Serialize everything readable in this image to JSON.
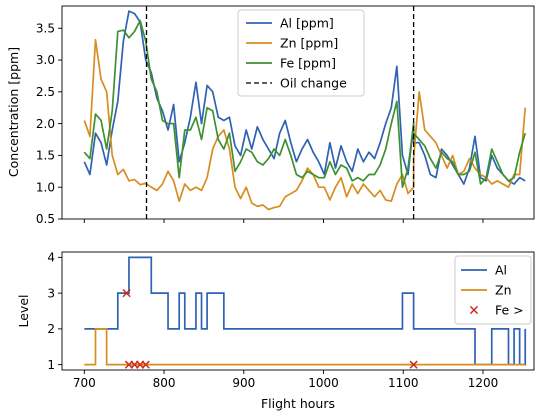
{
  "chart_data": [
    {
      "type": "line",
      "ylabel": "Concentration [ppm]",
      "xlim": [
        672,
        1264
      ],
      "ylim": [
        0.5,
        3.85
      ],
      "yticks": [
        "0.5",
        "1.0",
        "1.5",
        "2.0",
        "2.5",
        "3.0",
        "3.5"
      ],
      "ytick_values": [
        0.5,
        1.0,
        1.5,
        2.0,
        2.5,
        3.0,
        3.5
      ],
      "grid": false,
      "legend_position": "top-center",
      "vlines": {
        "name": "Oil change",
        "x": [
          778,
          1113
        ],
        "color": "#000000"
      },
      "series": [
        {
          "name": "Al [ppm]",
          "color": "#2f62b3",
          "x": [
            700,
            707,
            714,
            721,
            728,
            735,
            742,
            749,
            756,
            763,
            770,
            777,
            784,
            791,
            798,
            805,
            812,
            819,
            826,
            833,
            840,
            847,
            854,
            861,
            868,
            875,
            882,
            889,
            896,
            903,
            910,
            917,
            924,
            931,
            938,
            945,
            952,
            959,
            966,
            973,
            980,
            987,
            994,
            1001,
            1008,
            1015,
            1022,
            1029,
            1036,
            1043,
            1050,
            1057,
            1064,
            1071,
            1078,
            1085,
            1092,
            1099,
            1106,
            1113,
            1113,
            1120,
            1127,
            1134,
            1141,
            1148,
            1155,
            1162,
            1169,
            1176,
            1183,
            1190,
            1197,
            1204,
            1211,
            1218,
            1225,
            1232,
            1239,
            1246,
            1253
          ],
          "values": [
            1.4,
            1.2,
            1.85,
            1.7,
            1.35,
            1.9,
            2.35,
            3.3,
            3.77,
            3.73,
            3.6,
            3.0,
            2.8,
            2.4,
            2.2,
            1.9,
            2.3,
            1.4,
            1.7,
            2.1,
            2.65,
            2.0,
            2.6,
            2.5,
            2.1,
            2.05,
            2.1,
            1.65,
            1.5,
            1.9,
            1.6,
            1.95,
            1.75,
            1.6,
            1.45,
            1.85,
            2.05,
            1.7,
            1.4,
            1.6,
            1.75,
            1.55,
            1.4,
            1.2,
            1.7,
            1.3,
            1.65,
            1.4,
            1.25,
            1.6,
            1.4,
            1.55,
            1.45,
            1.7,
            2.0,
            2.25,
            2.9,
            1.5,
            1.2,
            2.0,
            1.7,
            1.7,
            1.5,
            1.2,
            1.15,
            1.6,
            1.5,
            1.35,
            1.2,
            1.05,
            1.3,
            1.8,
            1.15,
            1.1,
            1.5,
            1.3,
            1.2,
            1.1,
            1.05,
            1.15,
            1.1
          ]
        },
        {
          "name": "Zn [ppm]",
          "color": "#d78d1f",
          "x": [
            700,
            707,
            714,
            721,
            728,
            735,
            742,
            749,
            756,
            763,
            770,
            777,
            784,
            791,
            798,
            805,
            812,
            819,
            826,
            833,
            840,
            847,
            854,
            861,
            868,
            875,
            882,
            889,
            896,
            903,
            910,
            917,
            924,
            931,
            938,
            945,
            952,
            959,
            966,
            973,
            980,
            987,
            994,
            1001,
            1008,
            1015,
            1022,
            1029,
            1036,
            1043,
            1050,
            1057,
            1064,
            1071,
            1078,
            1085,
            1092,
            1099,
            1106,
            1113,
            1113,
            1120,
            1127,
            1134,
            1141,
            1148,
            1155,
            1162,
            1169,
            1176,
            1183,
            1190,
            1197,
            1204,
            1211,
            1218,
            1225,
            1232,
            1239,
            1246,
            1253
          ],
          "values": [
            2.05,
            1.8,
            3.32,
            2.7,
            2.5,
            1.5,
            1.2,
            1.28,
            1.1,
            1.12,
            1.04,
            1.06,
            1.0,
            0.95,
            1.05,
            1.25,
            1.1,
            0.78,
            1.05,
            0.95,
            1.0,
            0.95,
            1.15,
            1.6,
            1.8,
            1.9,
            1.6,
            1.0,
            0.82,
            1.0,
            0.75,
            0.7,
            0.72,
            0.65,
            0.68,
            0.7,
            0.85,
            0.9,
            0.95,
            1.1,
            1.3,
            1.2,
            1.0,
            1.0,
            0.8,
            1.0,
            1.15,
            0.85,
            1.05,
            0.9,
            1.05,
            0.95,
            0.85,
            0.95,
            0.8,
            0.78,
            1.05,
            1.2,
            0.9,
            1.0,
            1.45,
            2.5,
            1.9,
            1.8,
            1.7,
            1.5,
            1.3,
            1.5,
            1.2,
            1.25,
            1.45,
            1.3,
            1.2,
            1.15,
            1.05,
            1.1,
            1.05,
            1.0,
            1.2,
            1.2,
            2.25
          ]
        },
        {
          "name": "Fe [ppm]",
          "color": "#3f9130",
          "x": [
            700,
            707,
            714,
            721,
            728,
            735,
            742,
            749,
            756,
            763,
            770,
            777,
            784,
            791,
            798,
            805,
            812,
            819,
            826,
            833,
            840,
            847,
            854,
            861,
            868,
            875,
            882,
            889,
            896,
            903,
            910,
            917,
            924,
            931,
            938,
            945,
            952,
            959,
            966,
            973,
            980,
            987,
            994,
            1001,
            1008,
            1015,
            1022,
            1029,
            1036,
            1043,
            1050,
            1057,
            1064,
            1071,
            1078,
            1085,
            1092,
            1099,
            1106,
            1113,
            1113,
            1120,
            1127,
            1134,
            1141,
            1148,
            1155,
            1162,
            1169,
            1176,
            1183,
            1190,
            1197,
            1204,
            1211,
            1218,
            1225,
            1232,
            1239,
            1246,
            1253
          ],
          "values": [
            1.55,
            1.45,
            2.15,
            2.05,
            1.6,
            2.2,
            3.45,
            3.47,
            3.35,
            3.45,
            3.62,
            3.3,
            2.7,
            2.5,
            2.05,
            2.0,
            2.0,
            1.15,
            1.9,
            1.9,
            2.1,
            1.75,
            2.25,
            2.2,
            1.75,
            1.6,
            1.85,
            1.25,
            1.4,
            1.6,
            1.55,
            1.4,
            1.35,
            1.45,
            1.6,
            1.5,
            1.75,
            1.5,
            1.2,
            1.15,
            1.25,
            1.2,
            1.15,
            1.15,
            1.4,
            1.2,
            1.35,
            1.3,
            1.1,
            1.15,
            1.1,
            1.2,
            1.2,
            1.35,
            1.6,
            2.0,
            2.35,
            1.0,
            1.3,
            2.0,
            1.85,
            1.75,
            1.65,
            1.45,
            1.3,
            1.55,
            1.45,
            1.4,
            1.2,
            1.2,
            1.25,
            1.55,
            1.05,
            1.15,
            1.6,
            1.4,
            1.2,
            1.1,
            1.15,
            1.55,
            1.85
          ]
        }
      ]
    },
    {
      "type": "line",
      "step": true,
      "xlabel": "Flight hours",
      "ylabel": "Level",
      "xlim": [
        672,
        1264
      ],
      "ylim": [
        0.85,
        4.15
      ],
      "xticks": [
        "700",
        "800",
        "900",
        "1000",
        "1100",
        "1200"
      ],
      "xtick_values": [
        700,
        800,
        900,
        1000,
        1100,
        1200
      ],
      "yticks": [
        "1",
        "2",
        "3",
        "4"
      ],
      "ytick_values": [
        1,
        2,
        3,
        4
      ],
      "grid": false,
      "legend_position": "top-right",
      "series": [
        {
          "name": "Al",
          "color": "#2f62b3",
          "x": [
            700,
            707,
            714,
            721,
            728,
            735,
            742,
            749,
            756,
            763,
            770,
            777,
            784,
            791,
            798,
            805,
            812,
            819,
            826,
            833,
            840,
            847,
            854,
            861,
            868,
            875,
            882,
            889,
            896,
            903,
            910,
            917,
            924,
            931,
            938,
            945,
            952,
            959,
            966,
            973,
            980,
            987,
            994,
            1001,
            1008,
            1015,
            1022,
            1029,
            1036,
            1043,
            1050,
            1057,
            1064,
            1071,
            1078,
            1085,
            1092,
            1099,
            1106,
            1113,
            1113,
            1120,
            1127,
            1134,
            1141,
            1148,
            1155,
            1162,
            1169,
            1176,
            1183,
            1190,
            1197,
            1204,
            1211,
            1218,
            1225,
            1232,
            1239,
            1246,
            1253
          ],
          "values": [
            2,
            2,
            2,
            2,
            2,
            2,
            3,
            3,
            4,
            4,
            4,
            4,
            3,
            3,
            3,
            2,
            2,
            3,
            2,
            2,
            3,
            2,
            3,
            3,
            3,
            2,
            2,
            2,
            2,
            2,
            2,
            2,
            2,
            2,
            2,
            2,
            2,
            2,
            2,
            2,
            2,
            2,
            2,
            2,
            2,
            2,
            2,
            2,
            2,
            2,
            2,
            2,
            2,
            2,
            2,
            2,
            2,
            3,
            3,
            2,
            2,
            2,
            2,
            2,
            2,
            2,
            2,
            2,
            2,
            2,
            2,
            1,
            1,
            1,
            2,
            2,
            2,
            1,
            2,
            1,
            2
          ]
        },
        {
          "name": "Zn",
          "color": "#d78d1f",
          "x": [
            700,
            707,
            714,
            721,
            728,
            735,
            742,
            749,
            756,
            763,
            770,
            777,
            784,
            791,
            798,
            805,
            812,
            819,
            826,
            833,
            840,
            847,
            854,
            861,
            868,
            875,
            882,
            889,
            896,
            903,
            910,
            917,
            924,
            931,
            938,
            945,
            952,
            959,
            966,
            973,
            980,
            987,
            994,
            1001,
            1008,
            1015,
            1022,
            1029,
            1036,
            1043,
            1050,
            1057,
            1064,
            1071,
            1078,
            1085,
            1092,
            1099,
            1106,
            1113,
            1113,
            1120,
            1127,
            1134,
            1141,
            1148,
            1155,
            1162,
            1169,
            1176,
            1183,
            1190,
            1197,
            1204,
            1211,
            1218,
            1225,
            1232,
            1239,
            1246,
            1253
          ],
          "values": [
            1,
            1,
            2,
            2,
            1,
            1,
            1,
            1,
            1,
            1,
            1,
            1,
            1,
            1,
            1,
            1,
            1,
            1,
            1,
            1,
            1,
            1,
            1,
            1,
            1,
            1,
            1,
            1,
            1,
            1,
            1,
            1,
            1,
            1,
            1,
            1,
            1,
            1,
            1,
            1,
            1,
            1,
            1,
            1,
            1,
            1,
            1,
            1,
            1,
            1,
            1,
            1,
            1,
            1,
            1,
            1,
            1,
            1,
            1,
            1,
            1,
            1,
            1,
            1,
            1,
            1,
            1,
            1,
            1,
            1,
            1,
            1,
            1,
            1,
            1,
            1,
            1,
            1,
            1,
            1,
            1
          ]
        },
        {
          "name": "Fe >",
          "type": "scatter",
          "marker": "x",
          "color": "#cc2b1d",
          "x": [
            753,
            756,
            763,
            770,
            777,
            1113
          ],
          "values": [
            3,
            1,
            1,
            1,
            1,
            1
          ]
        }
      ]
    }
  ]
}
